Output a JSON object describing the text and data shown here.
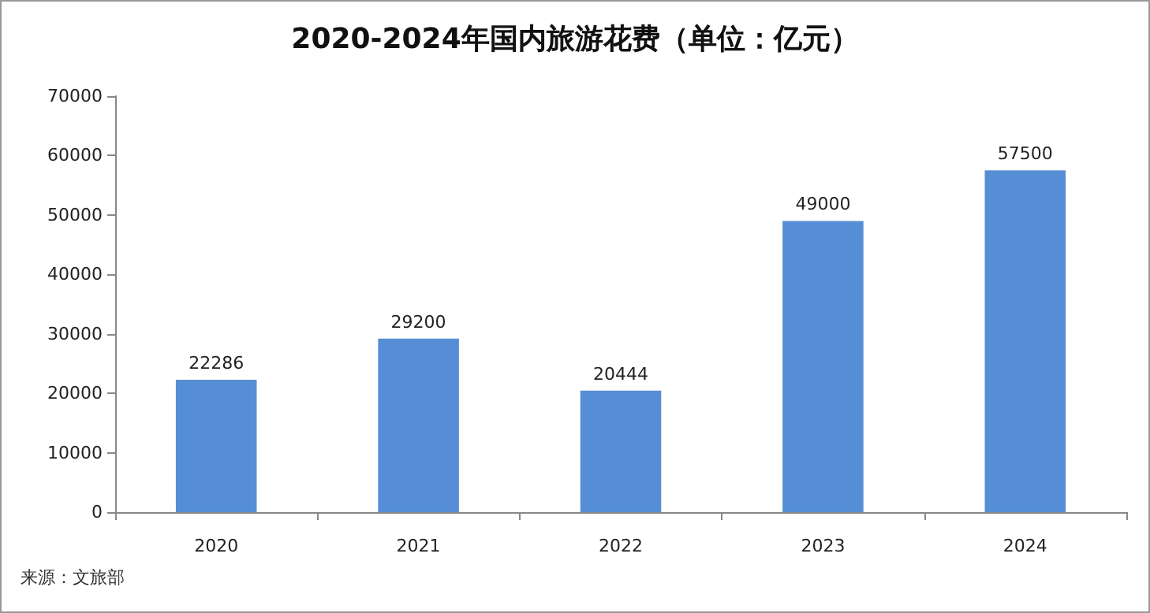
{
  "chart_data": {
    "type": "bar",
    "title": "2020-2024年国内旅游花费（单位：亿元）",
    "categories": [
      "2020",
      "2021",
      "2022",
      "2023",
      "2024"
    ],
    "values": [
      22286,
      29200,
      20444,
      49000,
      57500
    ],
    "color": "#558ed5",
    "ylim": [
      0,
      70000
    ],
    "yticks": [
      0,
      10000,
      20000,
      30000,
      40000,
      50000,
      60000,
      70000
    ],
    "grid": false,
    "data_labels": true,
    "annotations": [
      "来源：文旅部"
    ]
  }
}
